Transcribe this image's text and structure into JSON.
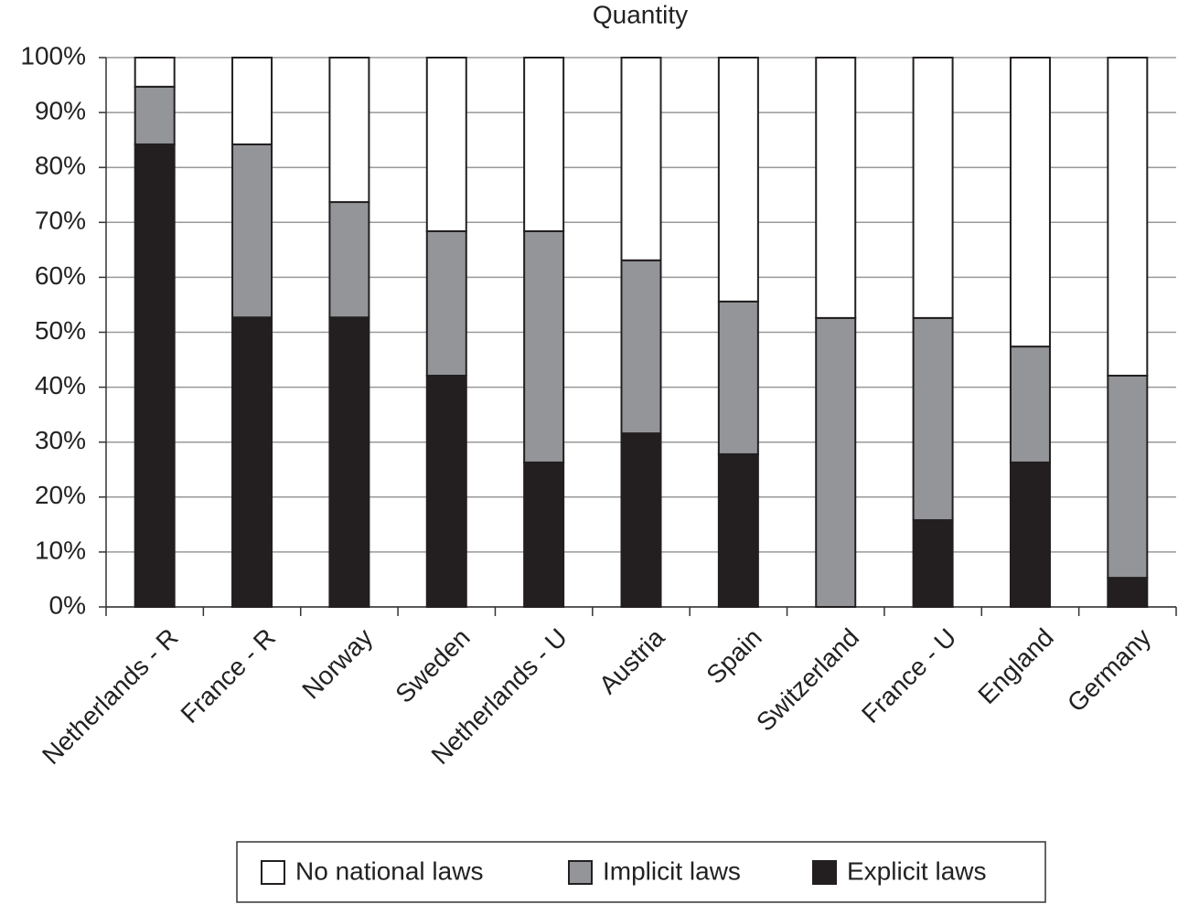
{
  "chart_data": {
    "type": "stacked_bar",
    "title": "Quantity",
    "categories": [
      "Netherlands - R",
      "France - R",
      "Norway",
      "Sweden",
      "Netherlands - U",
      "Austria",
      "Spain",
      "Switzerland",
      "France - U",
      "England",
      "Germany"
    ],
    "series": [
      {
        "name": "No national laws",
        "color": "#ffffff",
        "values": [
          5.3,
          15.8,
          26.3,
          31.6,
          31.6,
          36.9,
          44.4,
          47.4,
          47.4,
          52.6,
          57.9
        ]
      },
      {
        "name": "Implicit laws",
        "color": "#939598",
        "values": [
          10.5,
          31.5,
          21.0,
          26.3,
          42.1,
          31.5,
          27.8,
          52.6,
          36.8,
          21.1,
          36.8
        ]
      },
      {
        "name": "Explicit laws",
        "color": "#231f20",
        "values": [
          84.2,
          52.7,
          52.7,
          42.1,
          26.3,
          31.6,
          27.8,
          0,
          15.8,
          26.3,
          5.3
        ]
      }
    ],
    "ylim": [
      0,
      100
    ],
    "yticks": [
      {
        "value": 0,
        "label": "0%"
      },
      {
        "value": 10,
        "label": "10%"
      },
      {
        "value": 20,
        "label": "20%"
      },
      {
        "value": 30,
        "label": "30%"
      },
      {
        "value": 40,
        "label": "40%"
      },
      {
        "value": 50,
        "label": "50%"
      },
      {
        "value": 60,
        "label": "60%"
      },
      {
        "value": 70,
        "label": "70%"
      },
      {
        "value": 80,
        "label": "80%"
      },
      {
        "value": 90,
        "label": "90%"
      },
      {
        "value": 100,
        "label": "100%"
      }
    ],
    "grid": true,
    "legend": "bottom"
  }
}
